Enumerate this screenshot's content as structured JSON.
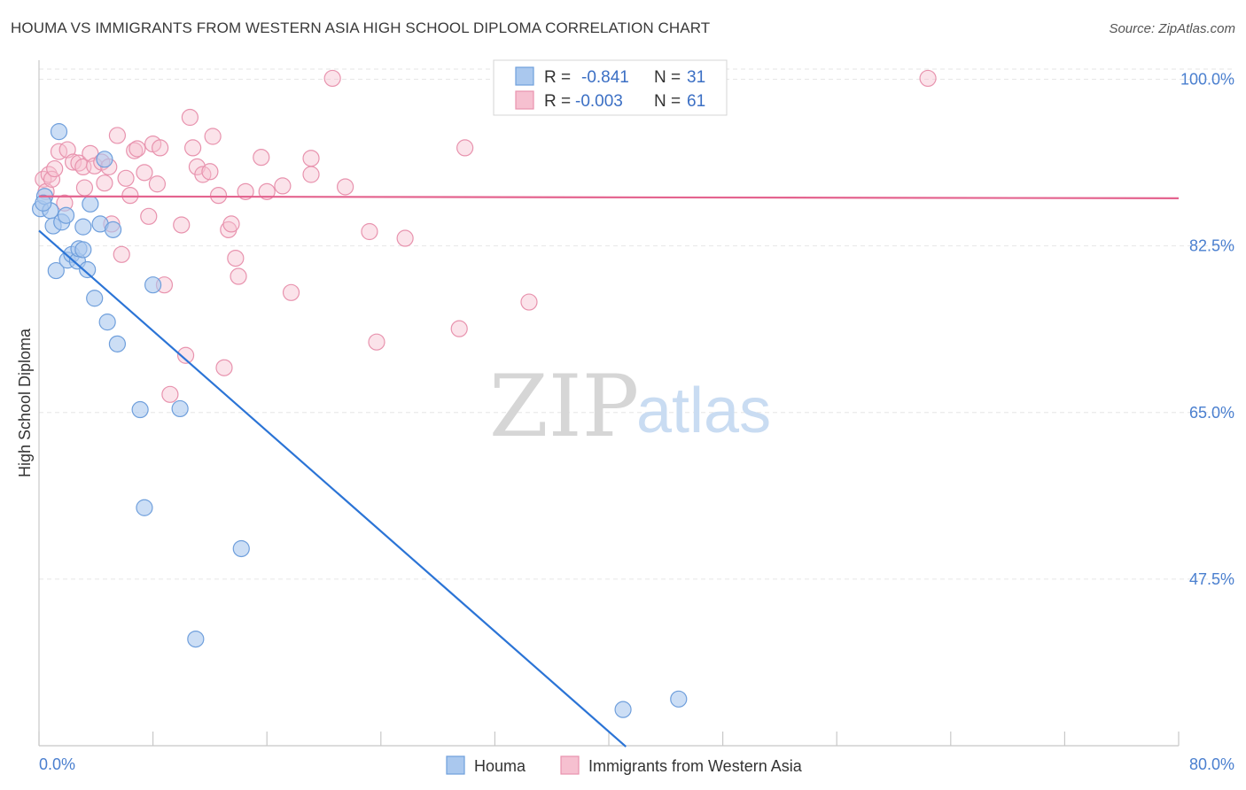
{
  "title": "HOUMA VS IMMIGRANTS FROM WESTERN ASIA HIGH SCHOOL DIPLOMA CORRELATION CHART",
  "source": "Source: ZipAtlas.com",
  "watermark": {
    "zip": "ZIP",
    "atlas": "atlas"
  },
  "colors": {
    "houma_fill": "#aac8ee",
    "houma_stroke": "#6f9fdc",
    "houma_line": "#2b74d6",
    "wa_fill": "#f6c0d0",
    "wa_stroke": "#e893ae",
    "wa_line": "#e4648f",
    "grid": "#e6e6e6",
    "tick_label": "#4a7fcf"
  },
  "legend": {
    "rows": [
      {
        "r_label": "R =",
        "r_value": "-0.841",
        "n_label": "N =",
        "n_value": "31"
      },
      {
        "r_label": "R =",
        "r_value": "-0.003",
        "n_label": "N =",
        "n_value": "61"
      }
    ]
  },
  "chart_data": {
    "type": "scatter",
    "title": "HOUMA VS IMMIGRANTS FROM WESTERN ASIA HIGH SCHOOL DIPLOMA CORRELATION CHART",
    "xlabel": "",
    "ylabel": "High School Diploma",
    "xlim": [
      0,
      80
    ],
    "ylim": [
      30,
      102
    ],
    "x_tick_labels": [
      "0.0%",
      "80.0%"
    ],
    "y_ticks": [
      100.0,
      82.5,
      65.0,
      47.5
    ],
    "y_tick_labels": [
      "100.0%",
      "82.5%",
      "65.0%",
      "47.5%"
    ],
    "grid": true,
    "series": [
      {
        "name": "Houma",
        "points": [
          [
            0.1,
            86.4
          ],
          [
            0.4,
            87.7
          ],
          [
            0.8,
            86.2
          ],
          [
            1.0,
            84.6
          ],
          [
            1.2,
            79.9
          ],
          [
            1.4,
            94.5
          ],
          [
            1.6,
            85.0
          ],
          [
            1.9,
            85.7
          ],
          [
            2.0,
            81.0
          ],
          [
            2.3,
            81.6
          ],
          [
            2.7,
            80.9
          ],
          [
            2.8,
            82.2
          ],
          [
            3.1,
            84.5
          ],
          [
            3.1,
            82.1
          ],
          [
            3.4,
            80.0
          ],
          [
            3.6,
            86.9
          ],
          [
            3.9,
            77.0
          ],
          [
            4.3,
            84.8
          ],
          [
            4.6,
            91.6
          ],
          [
            4.8,
            74.5
          ],
          [
            5.2,
            84.2
          ],
          [
            5.5,
            72.2
          ],
          [
            7.1,
            65.3
          ],
          [
            7.4,
            55.0
          ],
          [
            8.0,
            78.4
          ],
          [
            9.9,
            65.4
          ],
          [
            11.0,
            41.2
          ],
          [
            14.2,
            50.7
          ],
          [
            41.0,
            33.8
          ],
          [
            44.9,
            34.9
          ],
          [
            0.3,
            87.0
          ]
        ],
        "trend": {
          "x": [
            0,
            41.2
          ],
          "y": [
            84.1,
            29.9
          ]
        }
      },
      {
        "name": "Immigrants from Western Asia",
        "points": [
          [
            0.3,
            89.5
          ],
          [
            0.5,
            88.2
          ],
          [
            0.7,
            90.0
          ],
          [
            0.9,
            89.5
          ],
          [
            1.1,
            90.6
          ],
          [
            1.4,
            92.4
          ],
          [
            1.8,
            87.0
          ],
          [
            2.0,
            92.6
          ],
          [
            2.4,
            91.3
          ],
          [
            2.8,
            91.2
          ],
          [
            3.1,
            90.8
          ],
          [
            3.2,
            88.6
          ],
          [
            3.6,
            92.2
          ],
          [
            3.9,
            90.9
          ],
          [
            4.4,
            91.3
          ],
          [
            4.6,
            89.1
          ],
          [
            4.9,
            90.8
          ],
          [
            5.1,
            84.8
          ],
          [
            5.5,
            94.1
          ],
          [
            5.8,
            81.6
          ],
          [
            6.1,
            89.6
          ],
          [
            6.4,
            87.8
          ],
          [
            6.7,
            92.5
          ],
          [
            6.9,
            92.7
          ],
          [
            7.4,
            90.2
          ],
          [
            7.7,
            85.6
          ],
          [
            8.0,
            93.2
          ],
          [
            8.3,
            89.0
          ],
          [
            8.5,
            92.8
          ],
          [
            8.8,
            78.4
          ],
          [
            9.2,
            66.9
          ],
          [
            10.0,
            84.7
          ],
          [
            10.3,
            71.0
          ],
          [
            10.6,
            96.0
          ],
          [
            10.8,
            92.8
          ],
          [
            11.1,
            90.8
          ],
          [
            11.5,
            90.0
          ],
          [
            12.0,
            90.3
          ],
          [
            12.2,
            94.0
          ],
          [
            12.6,
            87.8
          ],
          [
            13.0,
            69.7
          ],
          [
            13.3,
            84.2
          ],
          [
            13.5,
            84.8
          ],
          [
            13.8,
            81.2
          ],
          [
            14.0,
            79.3
          ],
          [
            14.5,
            88.2
          ],
          [
            15.6,
            91.8
          ],
          [
            16.0,
            88.2
          ],
          [
            17.1,
            88.8
          ],
          [
            17.7,
            77.6
          ],
          [
            19.1,
            91.7
          ],
          [
            19.1,
            90.0
          ],
          [
            20.6,
            100.1
          ],
          [
            21.5,
            88.7
          ],
          [
            23.2,
            84.0
          ],
          [
            23.7,
            72.4
          ],
          [
            25.7,
            83.3
          ],
          [
            29.5,
            73.8
          ],
          [
            29.9,
            92.8
          ],
          [
            34.4,
            76.6
          ],
          [
            62.4,
            100.1
          ]
        ],
        "trend": {
          "x": [
            0,
            80
          ],
          "y": [
            87.7,
            87.5
          ]
        }
      }
    ]
  },
  "bottom_legend": [
    {
      "label": "Houma"
    },
    {
      "label": "Immigrants from Western Asia"
    }
  ]
}
